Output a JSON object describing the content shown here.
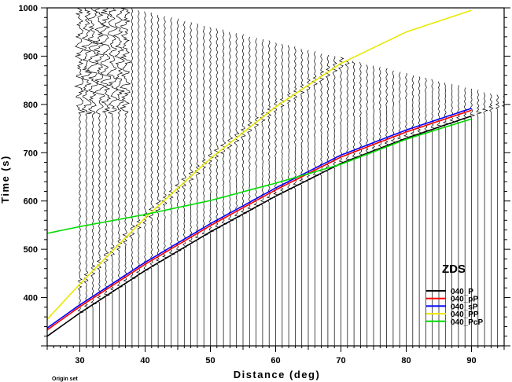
{
  "chart_data": {
    "type": "line",
    "xlabel": "Distance (deg)",
    "ylabel": "Time (s)",
    "xlim": [
      25,
      95
    ],
    "ylim": [
      300,
      1000
    ],
    "xticks": [
      30,
      40,
      50,
      60,
      70,
      80,
      90
    ],
    "yticks": [
      400,
      500,
      600,
      700,
      800,
      900,
      1000
    ],
    "grid": false,
    "legend_placement": "lower-right",
    "legend_title": "ZDS",
    "footnote": "Origin set",
    "traces": {
      "description_free_note": "",
      "x_start": 30,
      "x_end": 95,
      "x_step": 1
    },
    "series": [
      {
        "name": "040_P",
        "color": "#000000",
        "x": [
          25,
          30,
          40,
          50,
          60,
          70,
          80,
          90
        ],
        "y": [
          320,
          368,
          456,
          536,
          610,
          678,
          730,
          776
        ]
      },
      {
        "name": "040_pP",
        "color": "#ff0000",
        "x": [
          25,
          30,
          40,
          50,
          60,
          70,
          80,
          90
        ],
        "y": [
          333,
          381,
          469,
          549,
          623,
          691,
          743,
          788
        ]
      },
      {
        "name": "040_sP",
        "color": "#0000ff",
        "x": [
          25,
          30,
          40,
          50,
          60,
          70,
          80,
          90
        ],
        "y": [
          337,
          385,
          473,
          553,
          627,
          695,
          747,
          792
        ]
      },
      {
        "name": "040_PP",
        "color": "#e8e800",
        "x": [
          25,
          30,
          40,
          50,
          60,
          70,
          80,
          90
        ],
        "y": [
          355,
          428,
          565,
          688,
          795,
          885,
          950,
          995
        ]
      },
      {
        "name": "040_PcP",
        "color": "#00dd00",
        "x": [
          25,
          30,
          40,
          50,
          60,
          70,
          80,
          90
        ],
        "y": [
          533,
          547,
          572,
          601,
          637,
          676,
          728,
          770
        ]
      }
    ]
  }
}
